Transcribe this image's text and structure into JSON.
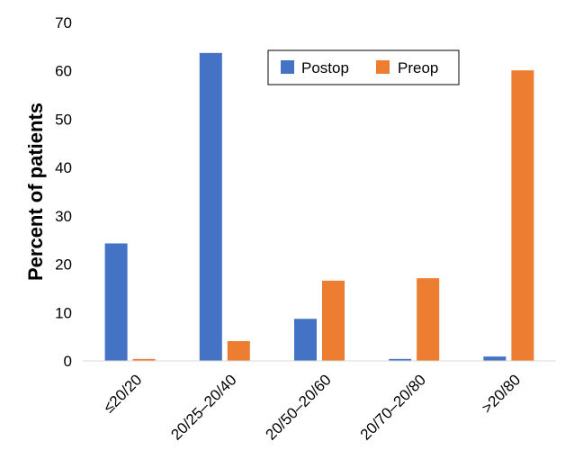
{
  "chart_data": {
    "type": "bar",
    "categories": [
      "≤20/20",
      "20/25–20/40",
      "20/50–20/60",
      "20/70–20/80",
      ">20/80"
    ],
    "series": [
      {
        "name": "Postop",
        "color": "#4472C4",
        "values": [
          24.3,
          63.7,
          8.7,
          0.4,
          0.9
        ]
      },
      {
        "name": "Preop",
        "color": "#ED7D31",
        "values": [
          0.4,
          4.1,
          16.6,
          17.1,
          60.1
        ]
      }
    ],
    "title": "",
    "xlabel": "",
    "ylabel": "Percent of patients",
    "ylim": [
      0,
      70
    ],
    "yticks": [
      0,
      10,
      20,
      30,
      40,
      50,
      60,
      70
    ],
    "grid": false,
    "legend": "top-right"
  }
}
